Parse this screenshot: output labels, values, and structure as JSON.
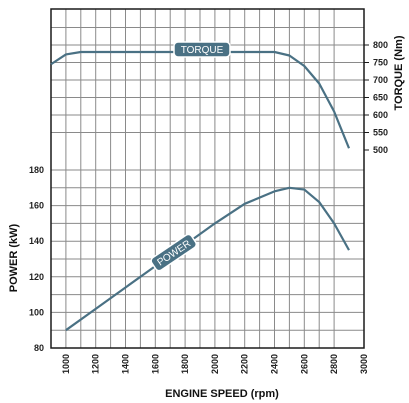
{
  "chart_data": {
    "type": "line",
    "xlabel": "ENGINE SPEED (rpm)",
    "xlim": [
      900,
      3000
    ],
    "x_ticks": [
      1000,
      1200,
      1400,
      1600,
      1800,
      2000,
      2200,
      2400,
      2600,
      2800,
      3000
    ],
    "grid": true,
    "colors": {
      "line": "#4a7184",
      "grid": "#8a8a8a",
      "frame": "#1a1a1a",
      "badge": "#4a7184"
    },
    "power": {
      "name": "POWER",
      "ylabel": "POWER (kW)",
      "ylim": [
        80,
        180
      ],
      "y_ticks": [
        80,
        100,
        120,
        140,
        160,
        180
      ],
      "x": [
        1000,
        1200,
        1400,
        1600,
        1800,
        2000,
        2200,
        2400,
        2500,
        2600,
        2700,
        2800,
        2900
      ],
      "y": [
        90,
        102,
        114,
        126,
        138,
        150,
        161,
        168,
        170,
        169,
        162,
        150,
        135
      ]
    },
    "torque": {
      "name": "TORQUE",
      "ylabel": "TORQUE (Nm)",
      "ylim": [
        500,
        800
      ],
      "y_ticks": [
        500,
        550,
        600,
        650,
        700,
        750,
        800
      ],
      "x": [
        900,
        1000,
        1100,
        1200,
        1400,
        1600,
        1800,
        2000,
        2200,
        2400,
        2500,
        2600,
        2700,
        2800,
        2900
      ],
      "y": [
        745,
        773,
        780,
        780,
        780,
        780,
        780,
        780,
        780,
        780,
        770,
        740,
        690,
        610,
        505
      ]
    }
  }
}
